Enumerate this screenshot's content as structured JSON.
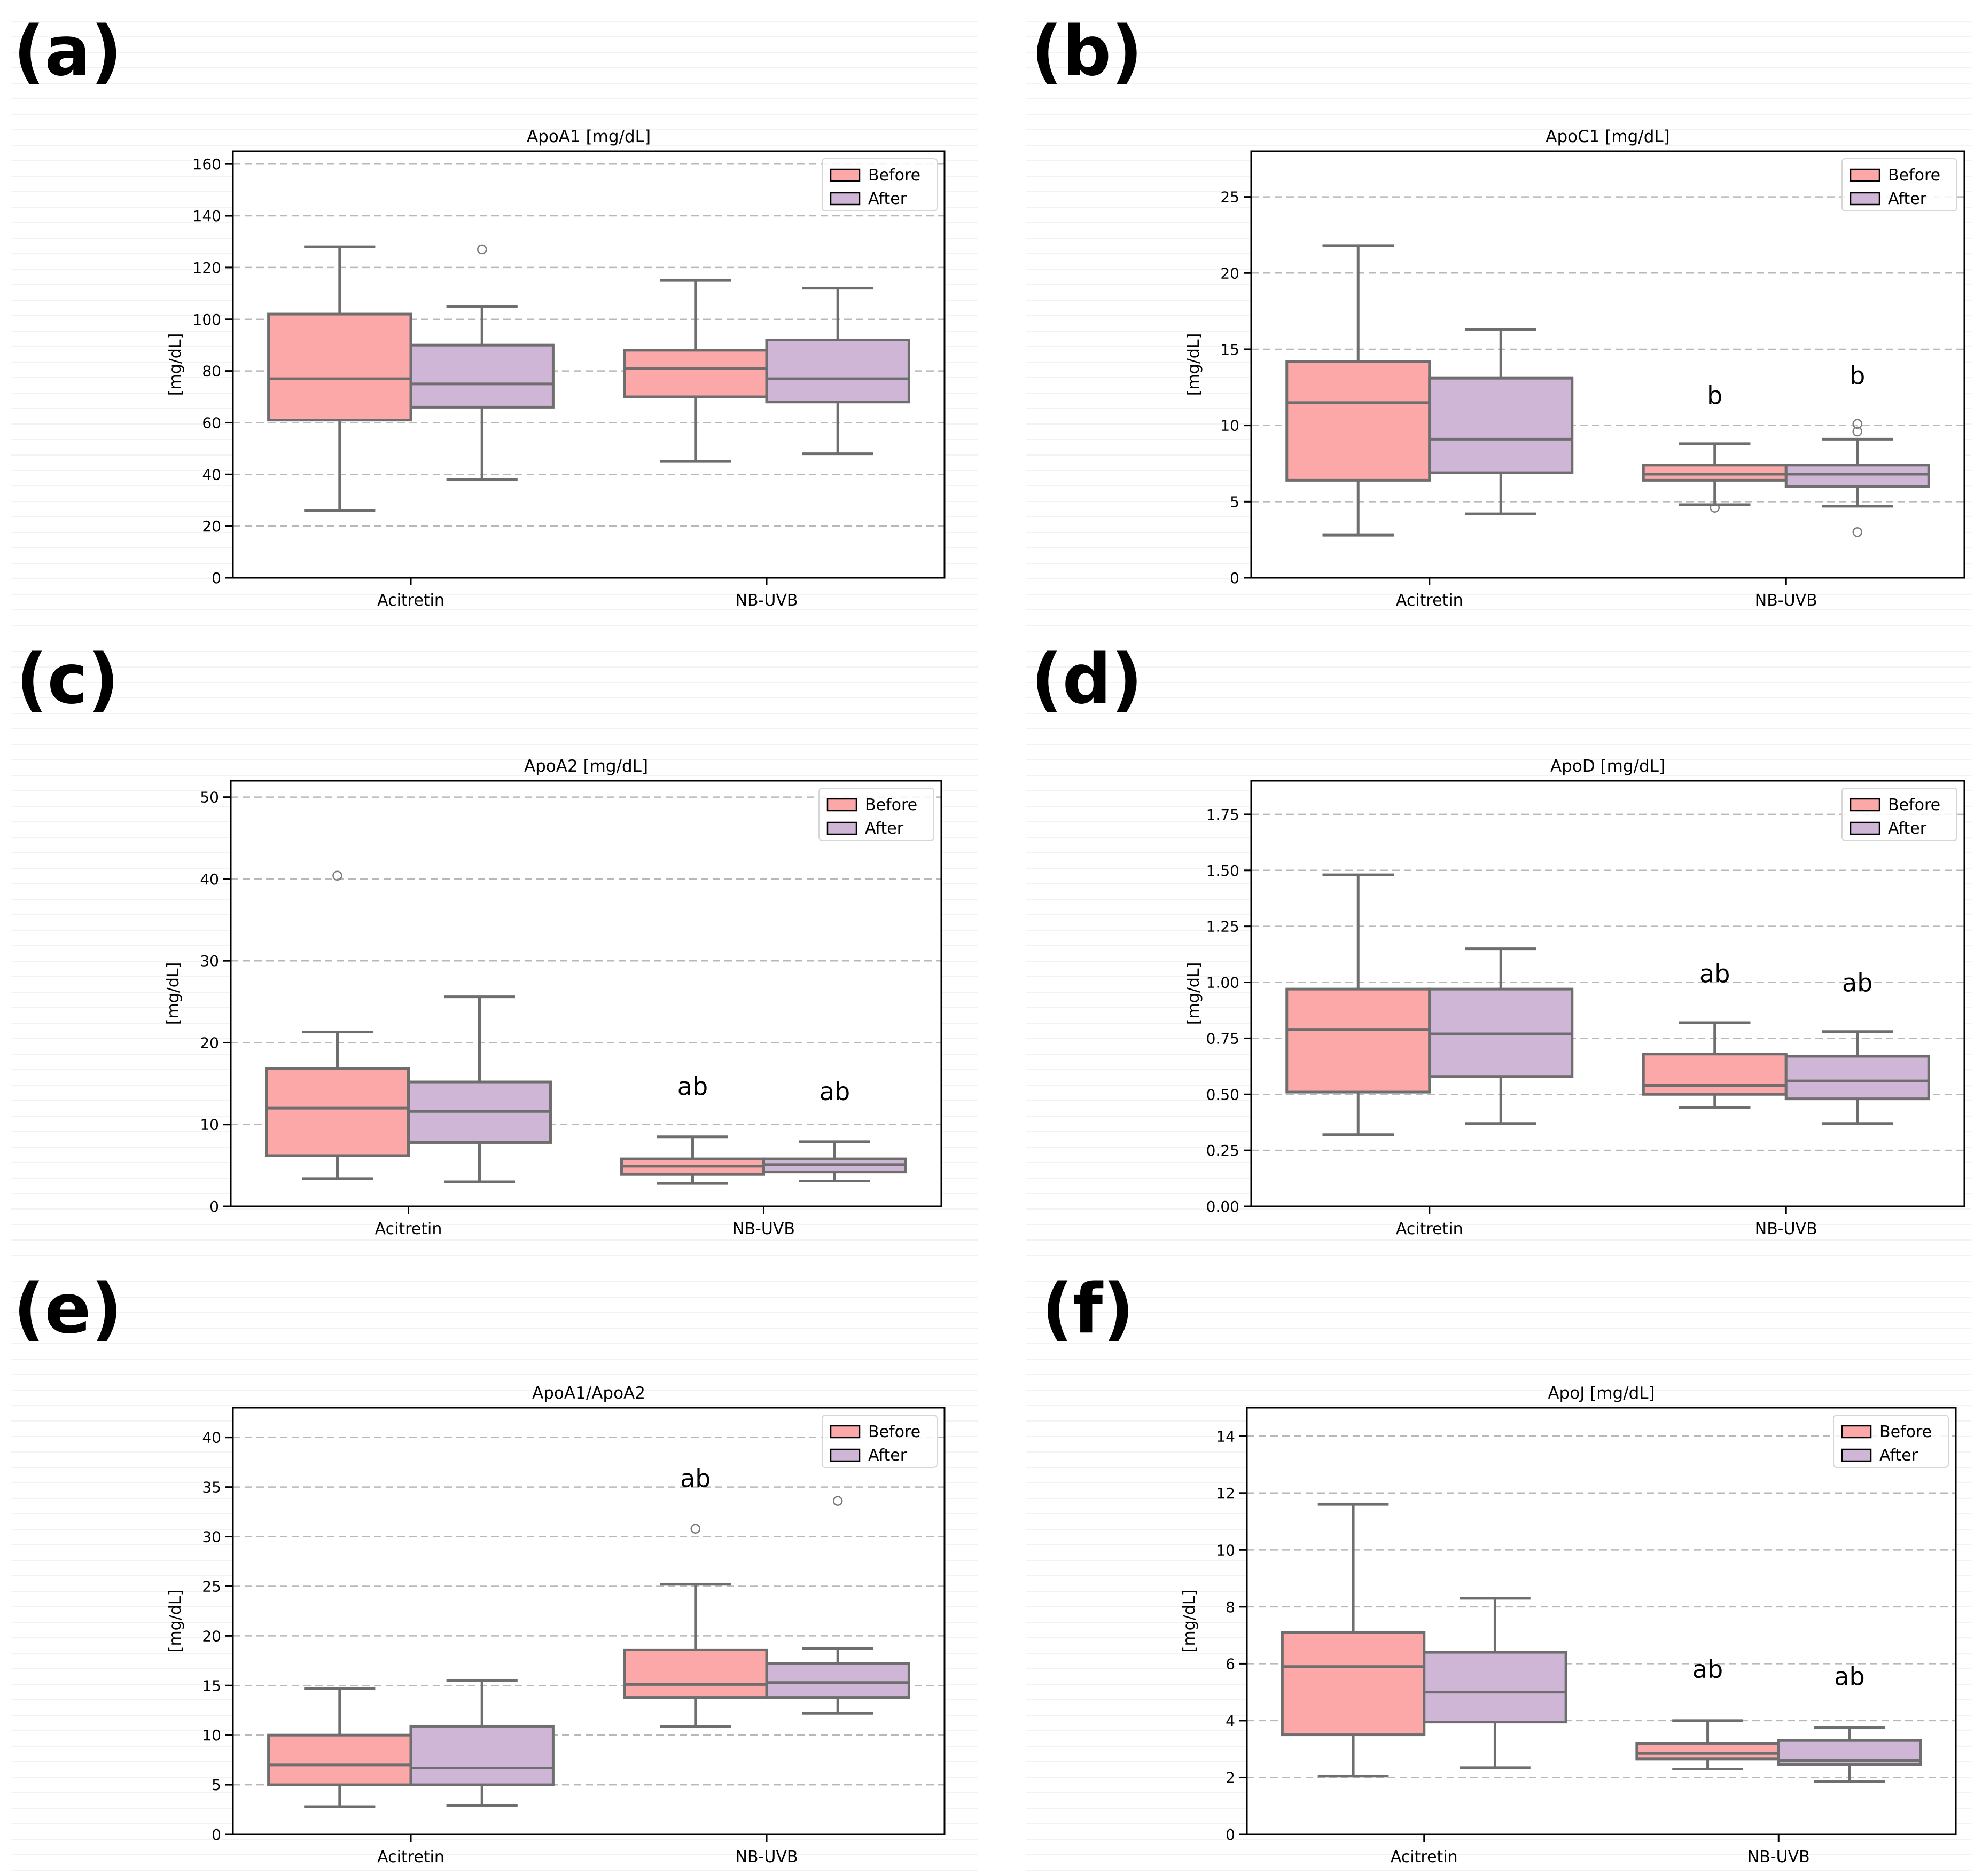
{
  "colors": {
    "before": "#fda8a8",
    "after": "#d0b6d6",
    "box_edge": "#6e6e6e",
    "grid": "#b8b8b8",
    "axis": "#000000"
  },
  "chart_data": [
    {
      "panel": "(a)",
      "type": "box",
      "title": "ApoA1 [mg/dL]",
      "ylabel": "[mg/dL]",
      "ylim": [
        0,
        165
      ],
      "yticks": [
        0,
        20,
        40,
        60,
        80,
        100,
        120,
        140,
        160
      ],
      "categories": [
        "Acitretin",
        "NB-UVB"
      ],
      "legend": [
        "Before",
        "After"
      ],
      "legend_position": "top-right",
      "series": [
        {
          "name": "Before",
          "boxes": [
            {
              "category": "Acitretin",
              "whisker_low": 26,
              "q1": 61,
              "median": 77,
              "q3": 102,
              "whisker_high": 128,
              "outliers": []
            },
            {
              "category": "NB-UVB",
              "whisker_low": 45,
              "q1": 70,
              "median": 81,
              "q3": 88,
              "whisker_high": 115,
              "outliers": []
            }
          ]
        },
        {
          "name": "After",
          "boxes": [
            {
              "category": "Acitretin",
              "whisker_low": 38,
              "q1": 66,
              "median": 75,
              "q3": 90,
              "whisker_high": 105,
              "outliers": [
                127
              ]
            },
            {
              "category": "NB-UVB",
              "whisker_low": 48,
              "q1": 68,
              "median": 77,
              "q3": 92,
              "whisker_high": 112,
              "outliers": []
            }
          ]
        }
      ],
      "annotations": []
    },
    {
      "panel": "(b)",
      "type": "box",
      "title": "ApoC1 [mg/dL]",
      "ylabel": "[mg/dL]",
      "ylim": [
        0,
        28
      ],
      "yticks": [
        0,
        5,
        10,
        15,
        20,
        25
      ],
      "categories": [
        "Acitretin",
        "NB-UVB"
      ],
      "legend": [
        "Before",
        "After"
      ],
      "legend_position": "top-right",
      "series": [
        {
          "name": "Before",
          "boxes": [
            {
              "category": "Acitretin",
              "whisker_low": 2.8,
              "q1": 6.4,
              "median": 11.5,
              "q3": 14.2,
              "whisker_high": 21.8,
              "outliers": []
            },
            {
              "category": "NB-UVB",
              "whisker_low": 4.8,
              "q1": 6.4,
              "median": 6.8,
              "q3": 7.4,
              "whisker_high": 8.8,
              "outliers": [
                4.6
              ]
            }
          ]
        },
        {
          "name": "After",
          "boxes": [
            {
              "category": "Acitretin",
              "whisker_low": 4.2,
              "q1": 6.9,
              "median": 9.1,
              "q3": 13.1,
              "whisker_high": 16.3,
              "outliers": []
            },
            {
              "category": "NB-UVB",
              "whisker_low": 4.7,
              "q1": 6.0,
              "median": 6.8,
              "q3": 7.4,
              "whisker_high": 9.1,
              "outliers": [
                10.1,
                9.6,
                3.0
              ]
            }
          ]
        }
      ],
      "annotations": [
        {
          "text": "b",
          "category": "NB-UVB",
          "series": "Before",
          "y": 11.4
        },
        {
          "text": "b",
          "category": "NB-UVB",
          "series": "After",
          "y": 12.7
        }
      ]
    },
    {
      "panel": "(c)",
      "type": "box",
      "title": "ApoA2 [mg/dL]",
      "ylabel": "[mg/dL]",
      "ylim": [
        0,
        52
      ],
      "yticks": [
        0,
        10,
        20,
        30,
        40,
        50
      ],
      "categories": [
        "Acitretin",
        "NB-UVB"
      ],
      "legend": [
        "Before",
        "After"
      ],
      "legend_position": "top-right",
      "series": [
        {
          "name": "Before",
          "boxes": [
            {
              "category": "Acitretin",
              "whisker_low": 3.4,
              "q1": 6.2,
              "median": 12.0,
              "q3": 16.8,
              "whisker_high": 21.3,
              "outliers": [
                40.4
              ]
            },
            {
              "category": "NB-UVB",
              "whisker_low": 2.8,
              "q1": 3.9,
              "median": 4.9,
              "q3": 5.8,
              "whisker_high": 8.5,
              "outliers": []
            }
          ]
        },
        {
          "name": "After",
          "boxes": [
            {
              "category": "Acitretin",
              "whisker_low": 3.0,
              "q1": 7.8,
              "median": 11.6,
              "q3": 15.2,
              "whisker_high": 25.6,
              "outliers": []
            },
            {
              "category": "NB-UVB",
              "whisker_low": 3.1,
              "q1": 4.2,
              "median": 5.1,
              "q3": 5.8,
              "whisker_high": 7.9,
              "outliers": []
            }
          ]
        }
      ],
      "annotations": [
        {
          "text": "ab",
          "category": "NB-UVB",
          "series": "Before",
          "y": 13.6
        },
        {
          "text": "ab",
          "category": "NB-UVB",
          "series": "After",
          "y": 13.0
        }
      ]
    },
    {
      "panel": "(d)",
      "type": "box",
      "title": "ApoD [mg/dL]",
      "ylabel": "[mg/dL]",
      "ylim": [
        0,
        1.9
      ],
      "yticks": [
        0.0,
        0.25,
        0.5,
        0.75,
        1.0,
        1.25,
        1.5,
        1.75
      ],
      "ytick_labels": [
        "0.00",
        "0.25",
        "0.50",
        "0.75",
        "1.00",
        "1.25",
        "1.50",
        "1.75"
      ],
      "categories": [
        "Acitretin",
        "NB-UVB"
      ],
      "legend": [
        "Before",
        "After"
      ],
      "legend_position": "top-right",
      "series": [
        {
          "name": "Before",
          "boxes": [
            {
              "category": "Acitretin",
              "whisker_low": 0.32,
              "q1": 0.51,
              "median": 0.79,
              "q3": 0.97,
              "whisker_high": 1.48,
              "outliers": []
            },
            {
              "category": "NB-UVB",
              "whisker_low": 0.44,
              "q1": 0.5,
              "median": 0.54,
              "q3": 0.68,
              "whisker_high": 0.82,
              "outliers": []
            }
          ]
        },
        {
          "name": "After",
          "boxes": [
            {
              "category": "Acitretin",
              "whisker_low": 0.37,
              "q1": 0.58,
              "median": 0.77,
              "q3": 0.97,
              "whisker_high": 1.15,
              "outliers": []
            },
            {
              "category": "NB-UVB",
              "whisker_low": 0.37,
              "q1": 0.48,
              "median": 0.56,
              "q3": 0.67,
              "whisker_high": 0.78,
              "outliers": []
            }
          ]
        }
      ],
      "annotations": [
        {
          "text": "ab",
          "category": "NB-UVB",
          "series": "Before",
          "y": 1.0
        },
        {
          "text": "ab",
          "category": "NB-UVB",
          "series": "After",
          "y": 0.96
        }
      ]
    },
    {
      "panel": "(e)",
      "type": "box",
      "title": "ApoA1/ApoA2",
      "ylabel": "[mg/dL]",
      "ylim": [
        0,
        43
      ],
      "yticks": [
        0,
        5,
        10,
        15,
        20,
        25,
        30,
        35,
        40
      ],
      "categories": [
        "Acitretin",
        "NB-UVB"
      ],
      "legend": [
        "Before",
        "After"
      ],
      "legend_position": "top-right",
      "series": [
        {
          "name": "Before",
          "boxes": [
            {
              "category": "Acitretin",
              "whisker_low": 2.8,
              "q1": 5.0,
              "median": 7.0,
              "q3": 10.0,
              "whisker_high": 14.7,
              "outliers": []
            },
            {
              "category": "NB-UVB",
              "whisker_low": 10.9,
              "q1": 13.8,
              "median": 15.1,
              "q3": 18.6,
              "whisker_high": 25.2,
              "outliers": [
                30.8
              ]
            }
          ]
        },
        {
          "name": "After",
          "boxes": [
            {
              "category": "Acitretin",
              "whisker_low": 2.9,
              "q1": 5.0,
              "median": 6.7,
              "q3": 10.9,
              "whisker_high": 15.5,
              "outliers": []
            },
            {
              "category": "NB-UVB",
              "whisker_low": 12.2,
              "q1": 13.8,
              "median": 15.3,
              "q3": 17.2,
              "whisker_high": 18.7,
              "outliers": [
                33.6
              ]
            }
          ]
        }
      ],
      "annotations": [
        {
          "text": "ab",
          "category": "NB-UVB",
          "series": "Before",
          "y": 35.0
        }
      ]
    },
    {
      "panel": "(f)",
      "type": "box",
      "title": "ApoJ [mg/dL]",
      "ylabel": "[mg/dL]",
      "ylim": [
        0,
        15
      ],
      "yticks": [
        0,
        2,
        4,
        6,
        8,
        10,
        12,
        14
      ],
      "categories": [
        "Acitretin",
        "NB-UVB"
      ],
      "legend": [
        "Before",
        "After"
      ],
      "legend_position": "top-right",
      "series": [
        {
          "name": "Before",
          "boxes": [
            {
              "category": "Acitretin",
              "whisker_low": 2.05,
              "q1": 3.5,
              "median": 5.9,
              "q3": 7.1,
              "whisker_high": 11.6,
              "outliers": []
            },
            {
              "category": "NB-UVB",
              "whisker_low": 2.3,
              "q1": 2.65,
              "median": 2.85,
              "q3": 3.2,
              "whisker_high": 4.0,
              "outliers": []
            }
          ]
        },
        {
          "name": "After",
          "boxes": [
            {
              "category": "Acitretin",
              "whisker_low": 2.35,
              "q1": 3.95,
              "median": 5.0,
              "q3": 6.4,
              "whisker_high": 8.3,
              "outliers": []
            },
            {
              "category": "NB-UVB",
              "whisker_low": 1.85,
              "q1": 2.45,
              "median": 2.6,
              "q3": 3.3,
              "whisker_high": 3.75,
              "outliers": []
            }
          ]
        }
      ],
      "annotations": [
        {
          "text": "ab",
          "category": "NB-UVB",
          "series": "Before",
          "y": 5.5
        },
        {
          "text": "ab",
          "category": "NB-UVB",
          "series": "After",
          "y": 5.25
        }
      ]
    }
  ]
}
